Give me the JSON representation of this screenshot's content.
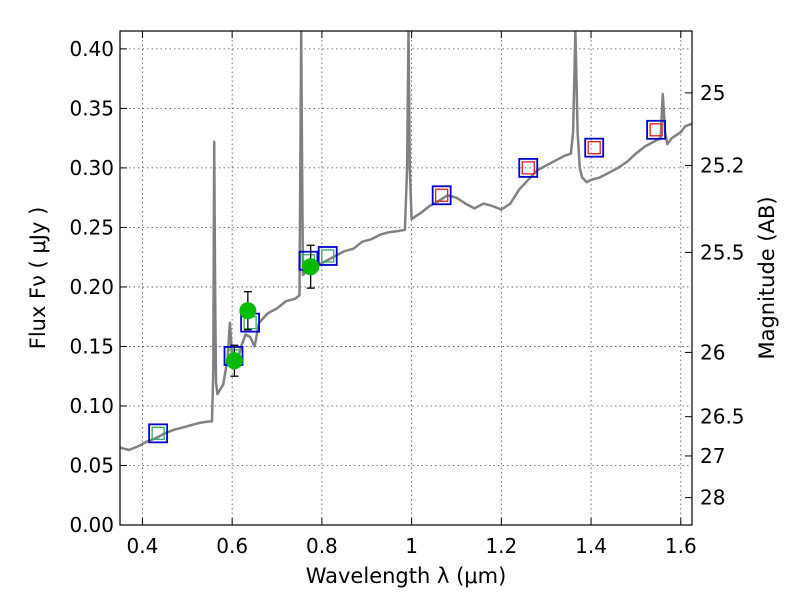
{
  "chart_data": {
    "type": "line",
    "title": "",
    "xlabel": "Wavelength  λ (μm)",
    "ylabel": "Flux  Fν  ( μJy )",
    "y2label": "Magnitude (AB)",
    "xlim": [
      0.35,
      1.625
    ],
    "ylim": [
      0.0,
      0.415
    ],
    "grid": true,
    "x_ticks": [
      0.4,
      0.6,
      0.8,
      1.0,
      1.2,
      1.4,
      1.6
    ],
    "x_tick_labels": [
      "0.4",
      "0.6",
      "0.8",
      "1",
      "1.2",
      "1.4",
      "1.6"
    ],
    "y_ticks": [
      0.0,
      0.05,
      0.1,
      0.15,
      0.2,
      0.25,
      0.3,
      0.35,
      0.4
    ],
    "y_tick_labels": [
      "0.00",
      "0.05",
      "0.10",
      "0.15",
      "0.20",
      "0.25",
      "0.30",
      "0.35",
      "0.40"
    ],
    "y2_ticks": [
      {
        "flux": 0.363,
        "label": "25"
      },
      {
        "flux": 0.302,
        "label": "25.2"
      },
      {
        "flux": 0.229,
        "label": "25.5"
      },
      {
        "flux": 0.145,
        "label": "26"
      },
      {
        "flux": 0.091,
        "label": "26.5"
      },
      {
        "flux": 0.058,
        "label": "27"
      },
      {
        "flux": 0.023,
        "label": "28"
      }
    ],
    "colors": {
      "sed": "#808080",
      "photometry": "#00bb00",
      "model_box": "#0000cc",
      "inner_green": "#33aa66",
      "inner_red": "#dd2222"
    },
    "sed_spectrum": [
      [
        0.35,
        0.065
      ],
      [
        0.37,
        0.063
      ],
      [
        0.39,
        0.066
      ],
      [
        0.41,
        0.07
      ],
      [
        0.43,
        0.073
      ],
      [
        0.45,
        0.077
      ],
      [
        0.47,
        0.08
      ],
      [
        0.49,
        0.082
      ],
      [
        0.51,
        0.084
      ],
      [
        0.53,
        0.086
      ],
      [
        0.55,
        0.087
      ],
      [
        0.555,
        0.087
      ],
      [
        0.558,
        0.13
      ],
      [
        0.56,
        0.322
      ],
      [
        0.562,
        0.2
      ],
      [
        0.564,
        0.12
      ],
      [
        0.567,
        0.11
      ],
      [
        0.58,
        0.118
      ],
      [
        0.59,
        0.14
      ],
      [
        0.595,
        0.17
      ],
      [
        0.6,
        0.14
      ],
      [
        0.61,
        0.135
      ],
      [
        0.62,
        0.15
      ],
      [
        0.63,
        0.16
      ],
      [
        0.64,
        0.158
      ],
      [
        0.65,
        0.15
      ],
      [
        0.66,
        0.17
      ],
      [
        0.68,
        0.178
      ],
      [
        0.7,
        0.182
      ],
      [
        0.72,
        0.188
      ],
      [
        0.74,
        0.19
      ],
      [
        0.75,
        0.193
      ],
      [
        0.752,
        0.3
      ],
      [
        0.754,
        0.415
      ],
      [
        0.756,
        0.3
      ],
      [
        0.758,
        0.21
      ],
      [
        0.77,
        0.215
      ],
      [
        0.78,
        0.213
      ],
      [
        0.79,
        0.218
      ],
      [
        0.81,
        0.222
      ],
      [
        0.83,
        0.226
      ],
      [
        0.85,
        0.23
      ],
      [
        0.87,
        0.232
      ],
      [
        0.89,
        0.238
      ],
      [
        0.91,
        0.24
      ],
      [
        0.93,
        0.244
      ],
      [
        0.95,
        0.246
      ],
      [
        0.97,
        0.247
      ],
      [
        0.985,
        0.248
      ],
      [
        0.99,
        0.3
      ],
      [
        0.993,
        0.415
      ],
      [
        0.996,
        0.3
      ],
      [
        1.0,
        0.257
      ],
      [
        1.02,
        0.262
      ],
      [
        1.04,
        0.268
      ],
      [
        1.06,
        0.272
      ],
      [
        1.08,
        0.277
      ],
      [
        1.1,
        0.275
      ],
      [
        1.12,
        0.27
      ],
      [
        1.14,
        0.266
      ],
      [
        1.16,
        0.27
      ],
      [
        1.18,
        0.268
      ],
      [
        1.2,
        0.265
      ],
      [
        1.22,
        0.27
      ],
      [
        1.24,
        0.282
      ],
      [
        1.26,
        0.29
      ],
      [
        1.28,
        0.298
      ],
      [
        1.3,
        0.302
      ],
      [
        1.32,
        0.306
      ],
      [
        1.34,
        0.31
      ],
      [
        1.355,
        0.312
      ],
      [
        1.36,
        0.33
      ],
      [
        1.365,
        0.415
      ],
      [
        1.37,
        0.33
      ],
      [
        1.375,
        0.3
      ],
      [
        1.38,
        0.292
      ],
      [
        1.39,
        0.288
      ],
      [
        1.4,
        0.29
      ],
      [
        1.42,
        0.292
      ],
      [
        1.44,
        0.296
      ],
      [
        1.46,
        0.3
      ],
      [
        1.48,
        0.305
      ],
      [
        1.5,
        0.312
      ],
      [
        1.52,
        0.318
      ],
      [
        1.54,
        0.322
      ],
      [
        1.555,
        0.325
      ],
      [
        1.56,
        0.362
      ],
      [
        1.565,
        0.33
      ],
      [
        1.57,
        0.32
      ],
      [
        1.58,
        0.325
      ],
      [
        1.6,
        0.33
      ],
      [
        1.61,
        0.335
      ],
      [
        1.625,
        0.337
      ]
    ],
    "photometry": [
      {
        "x": 0.605,
        "y": 0.138,
        "yerr": 0.013
      },
      {
        "x": 0.635,
        "y": 0.18,
        "yerr": 0.016
      },
      {
        "x": 0.775,
        "y": 0.217,
        "yerr": 0.018
      }
    ],
    "model_boxes": [
      {
        "x": 0.435,
        "y": 0.077,
        "inner": "green"
      },
      {
        "x": 0.603,
        "y": 0.142,
        "inner": "green"
      },
      {
        "x": 0.64,
        "y": 0.17,
        "inner": "green"
      },
      {
        "x": 0.77,
        "y": 0.222,
        "inner": "green"
      },
      {
        "x": 0.813,
        "y": 0.226,
        "inner": "green"
      },
      {
        "x": 1.067,
        "y": 0.277,
        "inner": "red"
      },
      {
        "x": 1.26,
        "y": 0.3,
        "inner": "red"
      },
      {
        "x": 1.407,
        "y": 0.317,
        "inner": "red"
      },
      {
        "x": 1.545,
        "y": 0.332,
        "inner": "red"
      }
    ]
  }
}
